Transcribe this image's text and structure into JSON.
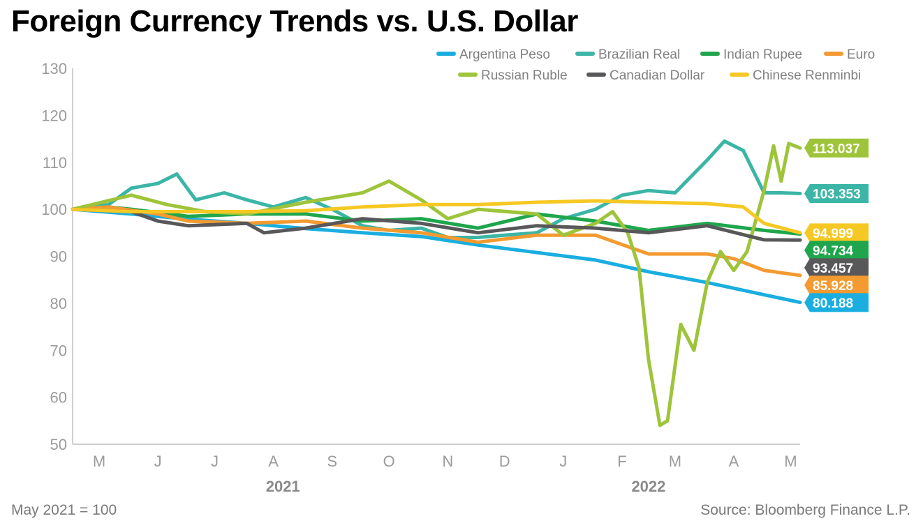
{
  "title": "Foreign Currency Trends vs. U.S. Dollar",
  "footnote": "May 2021 = 100",
  "source": "Source: Bloomberg Finance L.P.",
  "chart_data": {
    "type": "line",
    "title": "Foreign Currency Trends vs. U.S. Dollar",
    "xlabel": "",
    "ylabel": "",
    "ylim": [
      50,
      130
    ],
    "yticks": [
      50,
      60,
      70,
      80,
      90,
      100,
      110,
      120,
      130
    ],
    "x_range": [
      "2021-05-01",
      "2022-05-20"
    ],
    "xtick_labels": [
      "M",
      "J",
      "J",
      "A",
      "S",
      "O",
      "N",
      "D",
      "J",
      "F",
      "M",
      "A",
      "M"
    ],
    "year_labels": [
      "2021",
      "2022"
    ],
    "grid": false,
    "legend_position": "top-right",
    "series": [
      {
        "name": "Argentina Peso",
        "color": "#1aaee0",
        "end_label": "80.188",
        "x": [
          "2021-05-01",
          "2021-06-01",
          "2021-07-01",
          "2021-08-01",
          "2021-09-01",
          "2021-10-01",
          "2021-11-01",
          "2021-12-01",
          "2022-01-01",
          "2022-02-01",
          "2022-03-01",
          "2022-04-01",
          "2022-05-01",
          "2022-05-20"
        ],
        "y": [
          100,
          99,
          97.9,
          97,
          95.9,
          95,
          94.2,
          92.4,
          90.8,
          89.2,
          86.7,
          84.4,
          81.8,
          80.188
        ]
      },
      {
        "name": "Brazilian Real",
        "color": "#3bb5a6",
        "end_label": "103.353",
        "x": [
          "2021-05-01",
          "2021-05-20",
          "2021-06-01",
          "2021-06-15",
          "2021-06-25",
          "2021-07-05",
          "2021-07-20",
          "2021-08-01",
          "2021-08-15",
          "2021-09-01",
          "2021-09-15",
          "2021-10-01",
          "2021-10-15",
          "2021-11-01",
          "2021-11-15",
          "2021-12-01",
          "2021-12-15",
          "2022-01-01",
          "2022-01-15",
          "2022-02-01",
          "2022-02-15",
          "2022-03-01",
          "2022-03-15",
          "2022-04-01",
          "2022-04-10",
          "2022-04-20",
          "2022-05-01",
          "2022-05-10",
          "2022-05-20"
        ],
        "y": [
          100,
          101,
          104.5,
          105.5,
          107.5,
          102,
          103.5,
          102,
          100.5,
          102.5,
          100,
          96.5,
          95.5,
          96,
          94,
          94,
          94.5,
          95,
          98,
          100,
          103,
          104,
          103.5,
          110.5,
          114.5,
          112.5,
          103.5,
          103.5,
          103.353
        ]
      },
      {
        "name": "Indian Rupee",
        "color": "#1fa64d",
        "end_label": "94.734",
        "x": [
          "2021-05-01",
          "2021-05-20",
          "2021-06-01",
          "2021-07-01",
          "2021-08-01",
          "2021-09-01",
          "2021-10-01",
          "2021-11-01",
          "2021-12-01",
          "2022-01-01",
          "2022-02-01",
          "2022-03-01",
          "2022-04-01",
          "2022-05-01",
          "2022-05-20"
        ],
        "y": [
          100,
          100.5,
          100,
          98.5,
          99,
          99,
          97.5,
          98,
          96,
          99,
          97.5,
          95.5,
          97,
          95.5,
          94.734
        ]
      },
      {
        "name": "Euro",
        "color": "#f39a30",
        "end_label": "85.928",
        "x": [
          "2021-05-01",
          "2021-05-20",
          "2021-06-15",
          "2021-07-01",
          "2021-08-01",
          "2021-09-01",
          "2021-10-01",
          "2021-11-01",
          "2021-12-01",
          "2022-01-01",
          "2022-02-01",
          "2022-02-15",
          "2022-03-01",
          "2022-04-01",
          "2022-04-15",
          "2022-05-01",
          "2022-05-20"
        ],
        "y": [
          100,
          100.5,
          99,
          97.5,
          97,
          97.5,
          96,
          95,
          93,
          94.5,
          94.5,
          92.5,
          90.5,
          90.5,
          89.5,
          87,
          85.928
        ]
      },
      {
        "name": "Russian Ruble",
        "color": "#9ec43a",
        "end_label": "113.037",
        "x": [
          "2021-05-01",
          "2021-06-01",
          "2021-06-20",
          "2021-07-10",
          "2021-08-01",
          "2021-09-01",
          "2021-10-01",
          "2021-10-15",
          "2021-11-01",
          "2021-11-15",
          "2021-12-01",
          "2022-01-01",
          "2022-01-15",
          "2022-02-01",
          "2022-02-10",
          "2022-02-18",
          "2022-02-24",
          "2022-03-01",
          "2022-03-07",
          "2022-03-11",
          "2022-03-18",
          "2022-03-25",
          "2022-04-01",
          "2022-04-08",
          "2022-04-15",
          "2022-04-22",
          "2022-05-01",
          "2022-05-06",
          "2022-05-10",
          "2022-05-14",
          "2022-05-20"
        ],
        "y": [
          100,
          103,
          101,
          99.5,
          99,
          101.5,
          103.5,
          106,
          102,
          98,
          100,
          99,
          94.5,
          97,
          99.5,
          95,
          87.5,
          68,
          54,
          55,
          75.5,
          70,
          84.5,
          91,
          87,
          91,
          104,
          113.5,
          106,
          114,
          113.037
        ]
      },
      {
        "name": "Canadian Dollar",
        "color": "#58585a",
        "end_label": "93.457",
        "x": [
          "2021-05-01",
          "2021-06-01",
          "2021-06-15",
          "2021-07-01",
          "2021-08-01",
          "2021-08-10",
          "2021-09-01",
          "2021-10-01",
          "2021-11-01",
          "2021-12-01",
          "2022-01-01",
          "2022-02-01",
          "2022-03-01",
          "2022-04-01",
          "2022-05-01",
          "2022-05-20"
        ],
        "y": [
          100,
          99.5,
          97.5,
          96.5,
          97,
          95,
          96,
          98,
          97,
          95,
          96.5,
          96,
          95,
          96.5,
          93.5,
          93.457
        ]
      },
      {
        "name": "Chinese Renminbi",
        "color": "#f6c823",
        "end_label": "94.999",
        "x": [
          "2021-05-01",
          "2021-06-01",
          "2021-07-01",
          "2021-08-01",
          "2021-09-01",
          "2021-10-01",
          "2021-11-01",
          "2021-12-01",
          "2022-01-01",
          "2022-02-01",
          "2022-03-01",
          "2022-04-01",
          "2022-04-20",
          "2022-05-01",
          "2022-05-20"
        ],
        "y": [
          100,
          99.5,
          99.5,
          99.5,
          99.7,
          100.5,
          101,
          101,
          101.5,
          101.8,
          101.5,
          101.2,
          100.5,
          97,
          94.999
        ]
      }
    ]
  }
}
